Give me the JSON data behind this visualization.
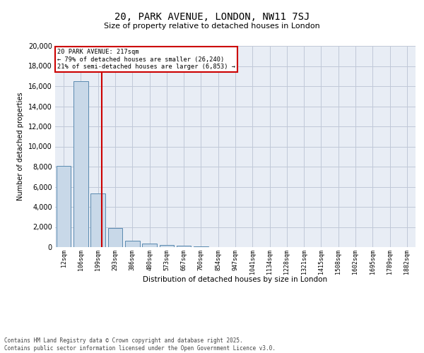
{
  "title1": "20, PARK AVENUE, LONDON, NW11 7SJ",
  "title2": "Size of property relative to detached houses in London",
  "xlabel": "Distribution of detached houses by size in London",
  "ylabel": "Number of detached properties",
  "bar_color": "#c8d8e8",
  "bar_edge_color": "#5a8ab0",
  "categories": [
    "12sqm",
    "106sqm",
    "199sqm",
    "293sqm",
    "386sqm",
    "480sqm",
    "573sqm",
    "667sqm",
    "760sqm",
    "854sqm",
    "947sqm",
    "1041sqm",
    "1134sqm",
    "1228sqm",
    "1321sqm",
    "1415sqm",
    "1508sqm",
    "1602sqm",
    "1695sqm",
    "1789sqm",
    "1882sqm"
  ],
  "values": [
    8100,
    16500,
    5300,
    1900,
    600,
    350,
    200,
    120,
    80,
    0,
    0,
    0,
    0,
    0,
    0,
    0,
    0,
    0,
    0,
    0,
    0
  ],
  "ylim": [
    0,
    20000
  ],
  "yticks": [
    0,
    2000,
    4000,
    6000,
    8000,
    10000,
    12000,
    14000,
    16000,
    18000,
    20000
  ],
  "property_line_x": 2.2,
  "annotation_title": "20 PARK AVENUE: 217sqm",
  "annotation_line1": "← 79% of detached houses are smaller (26,240)",
  "annotation_line2": "21% of semi-detached houses are larger (6,853) →",
  "annotation_box_color": "#ffffff",
  "annotation_box_edge": "#cc0000",
  "vline_color": "#cc0000",
  "grid_color": "#c0c8d8",
  "background_color": "#e8edf5",
  "footer1": "Contains HM Land Registry data © Crown copyright and database right 2025.",
  "footer2": "Contains public sector information licensed under the Open Government Licence v3.0."
}
